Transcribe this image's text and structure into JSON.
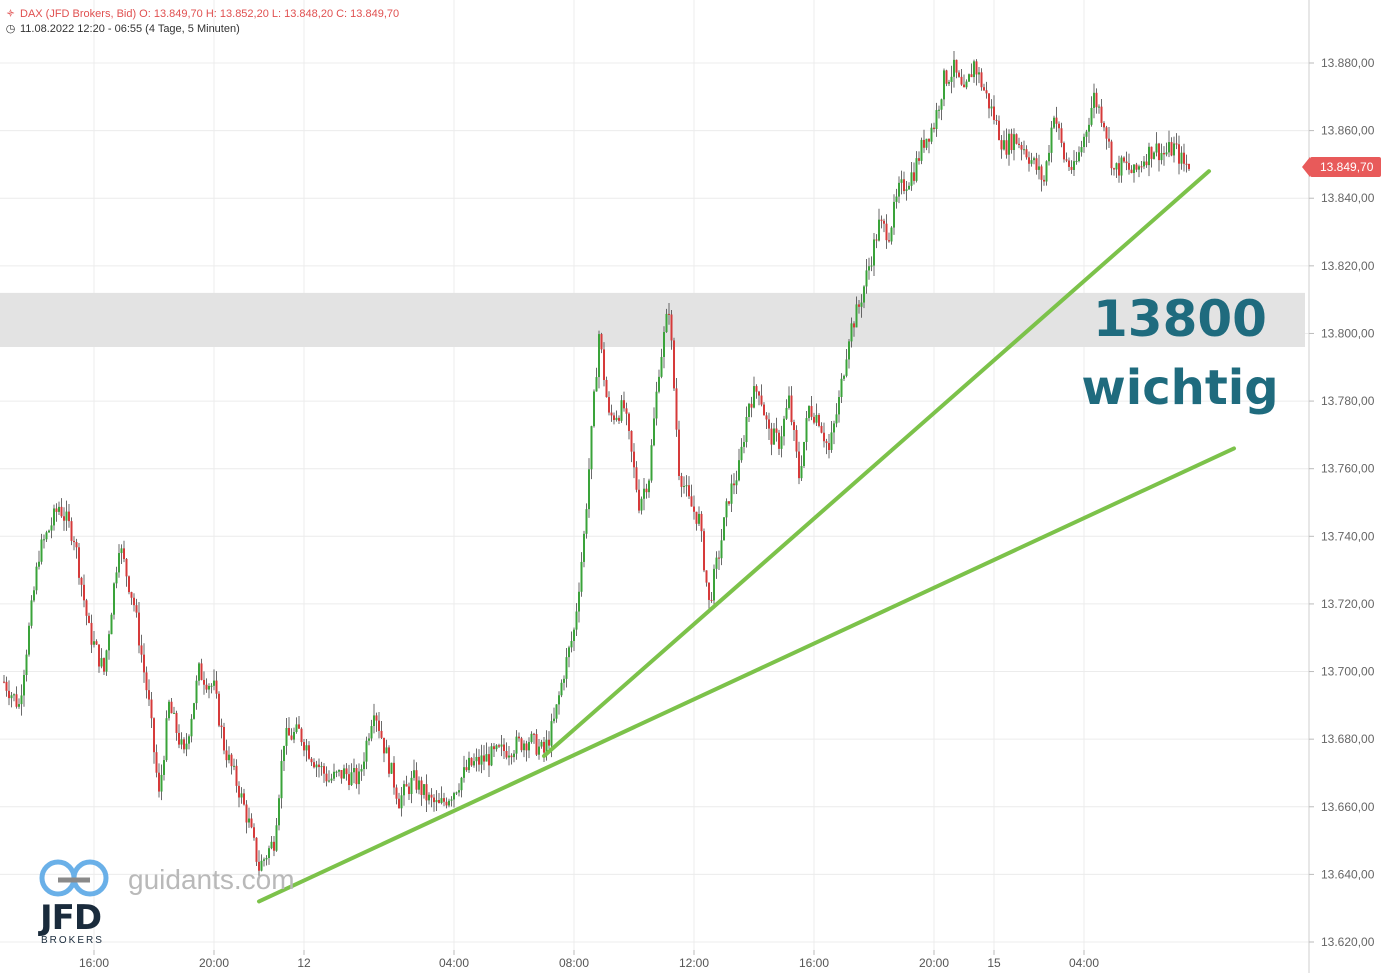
{
  "header": {
    "line1": "DAX (JFD Brokers, Bid)  O: 13.849,70  H: 13.852,20  L: 13.848,20  C: 13.849,70",
    "line2": "11.08.2022 12:20 - 06:55   (4 Tage, 5 Minuten)",
    "icon1": "candlestick-icon",
    "icon2": "clock-icon"
  },
  "annotation": {
    "line1": "13800",
    "line2": "wichtig"
  },
  "current_price": "13.849,70",
  "watermark": {
    "site": "guidants.com",
    "brand": "JFD",
    "sub": "BROKERS"
  },
  "colors": {
    "up": "#3aa33a",
    "down": "#d63a3a",
    "trendline": "#7cc24a",
    "zone": "#e3e3e3",
    "annotation": "#1f6b7e",
    "badge": "#e85a5a"
  },
  "chart_data": {
    "type": "candlestick",
    "symbol": "DAX (JFD Brokers, Bid)",
    "ylim": [
      13615,
      13895
    ],
    "y_ticks": [
      "13.880,00",
      "13.860,00",
      "13.840,00",
      "13.820,00",
      "13.800,00",
      "13.780,00",
      "13.760,00",
      "13.740,00",
      "13.720,00",
      "13.700,00",
      "13.680,00",
      "13.660,00",
      "13.640,00",
      "13.620,00"
    ],
    "y_tick_values": [
      13880,
      13860,
      13840,
      13820,
      13800,
      13780,
      13760,
      13740,
      13720,
      13700,
      13680,
      13660,
      13640,
      13620
    ],
    "x_labels": [
      "16:00",
      "20:00",
      "12",
      "04:00",
      "08:00",
      "12:00",
      "16:00",
      "20:00",
      "15",
      "04:00"
    ],
    "x_label_slots": [
      36,
      84,
      120,
      180,
      228,
      276,
      324,
      372,
      396,
      432
    ],
    "zone": {
      "label": "13800 wichtig",
      "from": 13796,
      "to": 13812
    },
    "trendlines": [
      {
        "from": [
          102,
          13632
        ],
        "to": [
          492,
          13766
        ]
      },
      {
        "from": [
          216,
          13675
        ],
        "to": [
          482,
          13848
        ]
      }
    ],
    "price_path": [
      [
        0,
        13697
      ],
      [
        6,
        13690
      ],
      [
        14,
        13735
      ],
      [
        22,
        13749
      ],
      [
        28,
        13740
      ],
      [
        34,
        13712
      ],
      [
        40,
        13700
      ],
      [
        46,
        13738
      ],
      [
        52,
        13720
      ],
      [
        58,
        13690
      ],
      [
        62,
        13663
      ],
      [
        66,
        13690
      ],
      [
        72,
        13675
      ],
      [
        78,
        13700
      ],
      [
        84,
        13695
      ],
      [
        88,
        13678
      ],
      [
        94,
        13665
      ],
      [
        98,
        13655
      ],
      [
        102,
        13642
      ],
      [
        108,
        13650
      ],
      [
        112,
        13680
      ],
      [
        118,
        13682
      ],
      [
        124,
        13674
      ],
      [
        130,
        13668
      ],
      [
        136,
        13670
      ],
      [
        142,
        13668
      ],
      [
        148,
        13690
      ],
      [
        152,
        13678
      ],
      [
        158,
        13662
      ],
      [
        164,
        13668
      ],
      [
        170,
        13662
      ],
      [
        174,
        13660
      ],
      [
        180,
        13665
      ],
      [
        186,
        13672
      ],
      [
        192,
        13674
      ],
      [
        198,
        13676
      ],
      [
        204,
        13678
      ],
      [
        210,
        13680
      ],
      [
        216,
        13676
      ],
      [
        220,
        13685
      ],
      [
        224,
        13700
      ],
      [
        228,
        13712
      ],
      [
        232,
        13740
      ],
      [
        236,
        13780
      ],
      [
        238,
        13800
      ],
      [
        242,
        13775
      ],
      [
        248,
        13778
      ],
      [
        254,
        13750
      ],
      [
        258,
        13758
      ],
      [
        262,
        13790
      ],
      [
        266,
        13808
      ],
      [
        270,
        13760
      ],
      [
        274,
        13750
      ],
      [
        278,
        13745
      ],
      [
        282,
        13720
      ],
      [
        286,
        13735
      ],
      [
        290,
        13752
      ],
      [
        294,
        13760
      ],
      [
        298,
        13780
      ],
      [
        302,
        13784
      ],
      [
        306,
        13770
      ],
      [
        310,
        13768
      ],
      [
        314,
        13780
      ],
      [
        318,
        13758
      ],
      [
        322,
        13778
      ],
      [
        326,
        13775
      ],
      [
        330,
        13765
      ],
      [
        334,
        13780
      ],
      [
        338,
        13800
      ],
      [
        342,
        13808
      ],
      [
        346,
        13820
      ],
      [
        350,
        13832
      ],
      [
        354,
        13830
      ],
      [
        358,
        13842
      ],
      [
        364,
        13848
      ],
      [
        368,
        13857
      ],
      [
        372,
        13862
      ],
      [
        376,
        13875
      ],
      [
        380,
        13878
      ],
      [
        384,
        13870
      ],
      [
        388,
        13880
      ],
      [
        392,
        13872
      ],
      [
        396,
        13864
      ],
      [
        400,
        13855
      ],
      [
        404,
        13858
      ],
      [
        408,
        13855
      ],
      [
        412,
        13850
      ],
      [
        416,
        13845
      ],
      [
        420,
        13866
      ],
      [
        424,
        13852
      ],
      [
        428,
        13848
      ],
      [
        432,
        13858
      ],
      [
        436,
        13870
      ],
      [
        440,
        13863
      ],
      [
        444,
        13848
      ],
      [
        448,
        13850
      ],
      [
        452,
        13847
      ],
      [
        456,
        13852
      ],
      [
        460,
        13855
      ],
      [
        464,
        13853
      ],
      [
        468,
        13855
      ],
      [
        472,
        13850
      ],
      [
        474,
        13850
      ]
    ]
  }
}
